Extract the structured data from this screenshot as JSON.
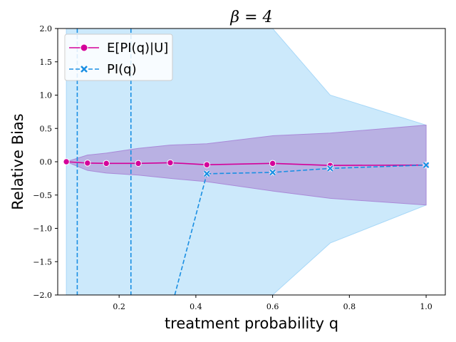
{
  "chart_data": {
    "type": "line",
    "title": "β = 4",
    "xlabel": "treatment probability q",
    "ylabel": "Relative Bias",
    "xlim": [
      0.04,
      1.05
    ],
    "ylim": [
      -2.0,
      2.0
    ],
    "xticks": [
      0.2,
      0.4,
      0.6,
      0.8,
      1.0
    ],
    "xtick_labels": [
      "0.2",
      "0.4",
      "0.6",
      "0.8",
      "1.0"
    ],
    "yticks": [
      -2.0,
      -1.5,
      -1.0,
      -0.5,
      0.0,
      0.5,
      1.0,
      1.5,
      2.0
    ],
    "ytick_labels": [
      "−2.0",
      "−1.5",
      "−1.0",
      "−0.5",
      "0.0",
      "0.5",
      "1.0",
      "1.5",
      "2.0"
    ],
    "grid": false,
    "legend_position": "top-left",
    "series": [
      {
        "name": "E[PI(q)|U]",
        "color": "#d4009a",
        "marker": "circle",
        "linestyle": "solid",
        "x": [
          0.0625,
          0.1176,
          0.1667,
          0.25,
          0.3333,
          0.4286,
          0.6,
          0.75,
          1.0
        ],
        "y": [
          0.0,
          -0.02,
          -0.025,
          -0.025,
          -0.015,
          -0.045,
          -0.025,
          -0.055,
          -0.05
        ],
        "band_lower": [
          0.0,
          -0.13,
          -0.17,
          -0.2,
          -0.25,
          -0.3,
          -0.44,
          -0.55,
          -0.65
        ],
        "band_upper": [
          0.0,
          0.1,
          0.13,
          0.2,
          0.25,
          0.27,
          0.39,
          0.43,
          0.55
        ],
        "band_color": "#b39ddb"
      },
      {
        "name": "PI(q)",
        "color": "#1a8fe3",
        "marker": "x",
        "linestyle": "dashed",
        "x": [
          0.4286,
          0.6,
          0.75,
          1.0
        ],
        "y": [
          -0.18,
          -0.16,
          -0.1,
          -0.05
        ],
        "offscale_segments": [
          {
            "x": [
              0.0909,
              0.0909
            ],
            "y": [
              2.0,
              -2.0
            ]
          },
          {
            "x": [
              0.2308,
              0.2308
            ],
            "y": [
              2.0,
              -2.0
            ]
          },
          {
            "x": [
              0.345,
              0.4286
            ],
            "y": [
              -2.0,
              -0.18
            ]
          }
        ],
        "band_x": [
          0.0625,
          0.4286,
          0.6,
          0.75,
          1.0
        ],
        "band_lower": [
          -2.0,
          -2.0,
          -2.0,
          -1.22,
          -0.65
        ],
        "band_upper": [
          2.0,
          2.0,
          2.0,
          1.0,
          0.55
        ],
        "band_color": "#cce9fb"
      }
    ]
  }
}
